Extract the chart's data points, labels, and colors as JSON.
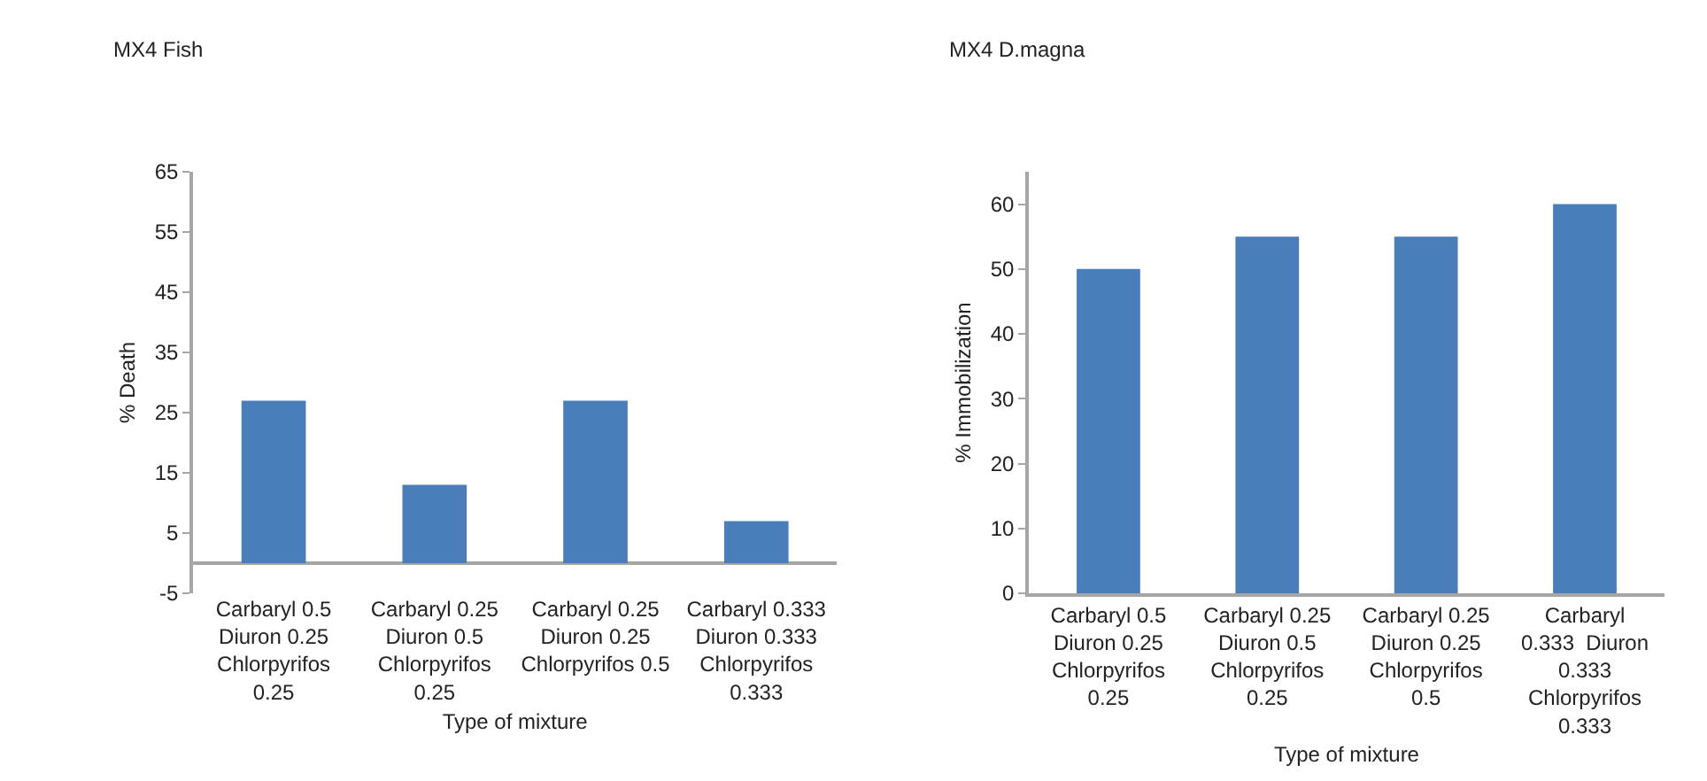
{
  "chart_data": [
    {
      "type": "bar",
      "title": "MX4 Fish",
      "xlabel": "Type of mixture",
      "ylabel": "% Death",
      "categories": [
        "Carbaryl 0.5\nDiuron 0.25\nChlorpyrifos\n0.25",
        "Carbaryl 0.25\nDiuron 0.5\nChlorpyrifos\n0.25",
        "Carbaryl 0.25\nDiuron 0.25\nChlorpyrifos 0.5",
        "Carbaryl 0.333\nDiuron 0.333\nChlorpyrifos\n0.333"
      ],
      "values": [
        27,
        13,
        27,
        7
      ],
      "color": "#4a7ebb",
      "ylim": [
        -5,
        65
      ],
      "yticks": [
        -5,
        5,
        15,
        25,
        35,
        45,
        55,
        65
      ]
    },
    {
      "type": "bar",
      "title": "MX4 D.magna",
      "xlabel": "Type of mixture",
      "ylabel": "% Immobilization",
      "categories": [
        "Carbaryl 0.5\nDiuron 0.25\nChlorpyrifos\n0.25",
        "Carbaryl 0.25\nDiuron 0.5\nChlorpyrifos\n0.25",
        "Carbaryl 0.25\nDiuron 0.25\nChlorpyrifos\n0.5",
        "Carbaryl\n0.333  Diuron\n0.333\nChlorpyrifos\n0.333"
      ],
      "values": [
        50,
        55,
        55,
        60
      ],
      "color": "#4a7ebb",
      "ylim": [
        0,
        65
      ],
      "yticks": [
        0,
        10,
        20,
        30,
        40,
        50,
        60
      ]
    }
  ]
}
